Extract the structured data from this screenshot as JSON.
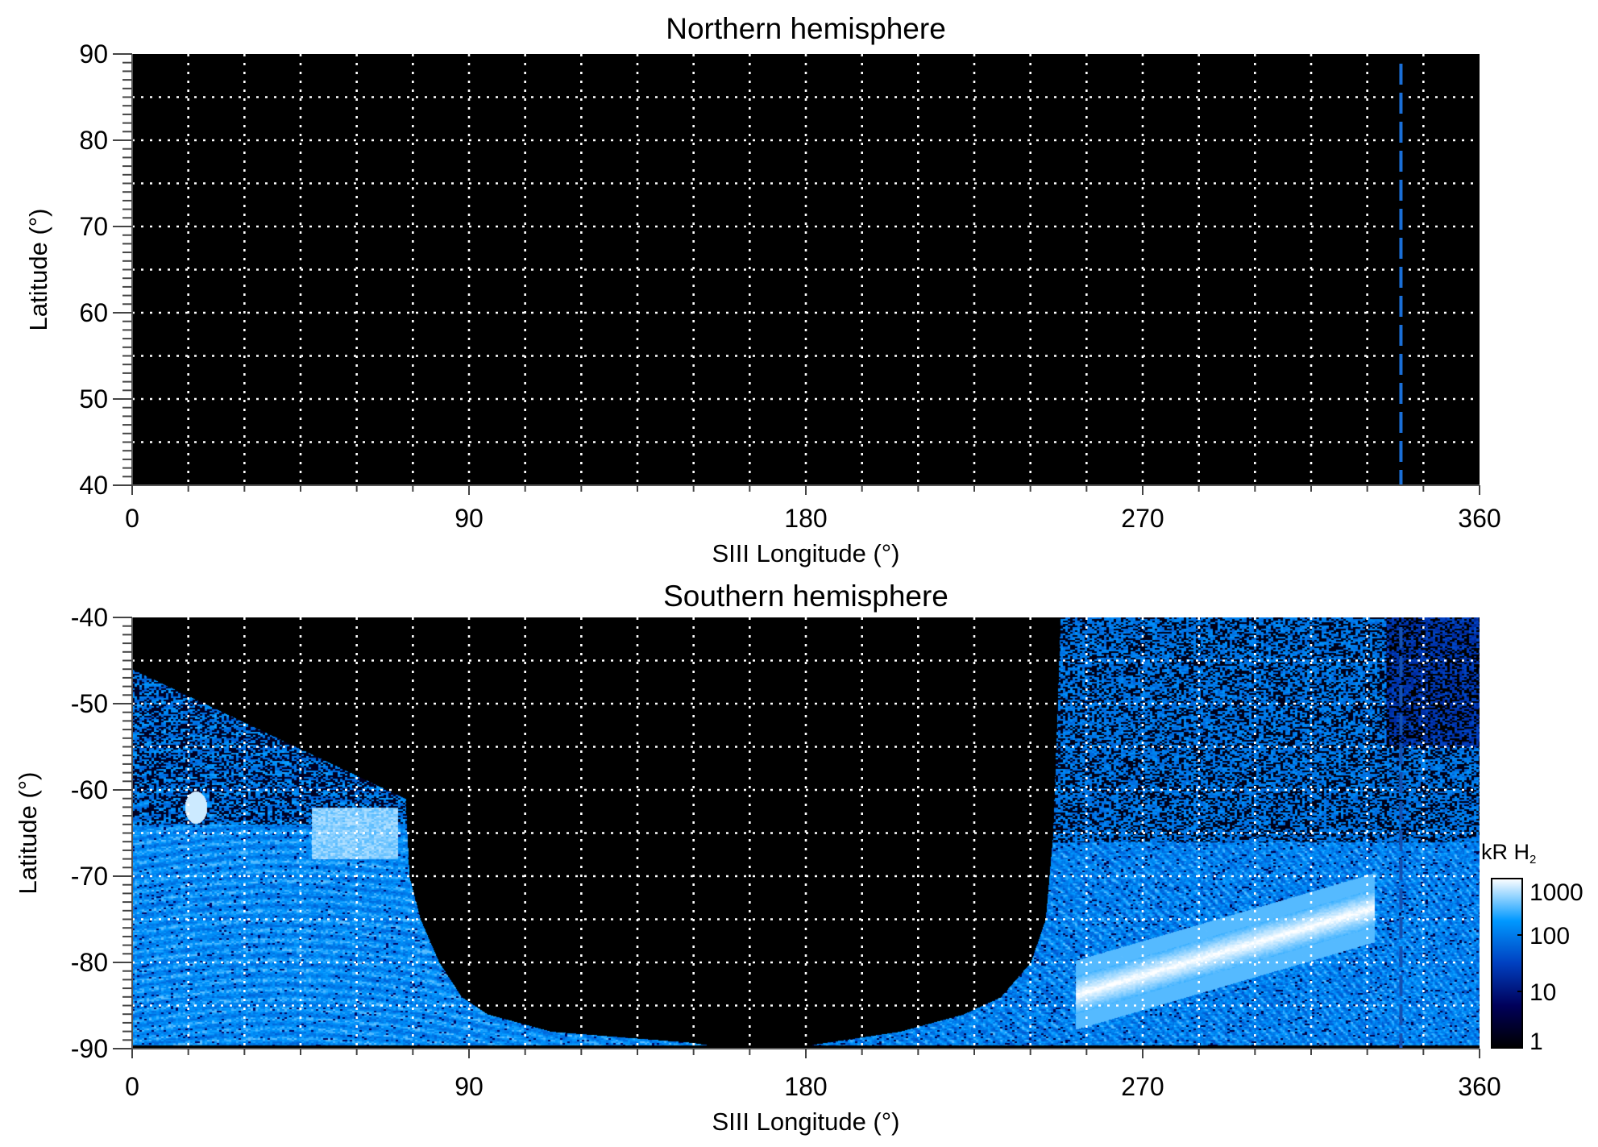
{
  "chart_data": [
    {
      "type": "heatmap",
      "title": "Northern hemisphere",
      "xlabel": "SIII Longitude (°)",
      "ylabel": "Latitude (°)",
      "xlim": [
        0,
        360
      ],
      "ylim": [
        40,
        90
      ],
      "xticks": [
        "0",
        "90",
        "180",
        "270",
        "360"
      ],
      "yticks": [
        "40",
        "50",
        "60",
        "70",
        "80",
        "90"
      ],
      "grid": true,
      "grid_x_step": 15,
      "grid_y_step": 5,
      "reference_line_longitude": 339,
      "reference_line_color": "#1a6fd8",
      "emission": "none"
    },
    {
      "type": "heatmap",
      "title": "Southern hemisphere",
      "xlabel": "SIII Longitude (°)",
      "ylabel": "Latitude (°)",
      "xlim": [
        0,
        360
      ],
      "ylim": [
        -90,
        -40
      ],
      "xticks": [
        "0",
        "90",
        "180",
        "270",
        "360"
      ],
      "yticks": [
        "-90",
        "-80",
        "-70",
        "-60",
        "-50",
        "-40"
      ],
      "grid": true,
      "grid_x_step": 15,
      "grid_y_step": 5,
      "reference_line_longitude": 339,
      "reference_line_color": "#1a6fd8",
      "colorbar": {
        "label_main": "kR H",
        "label_sub": "2",
        "scale": "log",
        "range": [
          1,
          1000
        ],
        "ticks": [
          "1",
          "10",
          "100",
          "1000"
        ],
        "colors": [
          "#000000",
          "#00005a",
          "#0040c0",
          "#0098ff",
          "#ffffff"
        ]
      }
    }
  ]
}
